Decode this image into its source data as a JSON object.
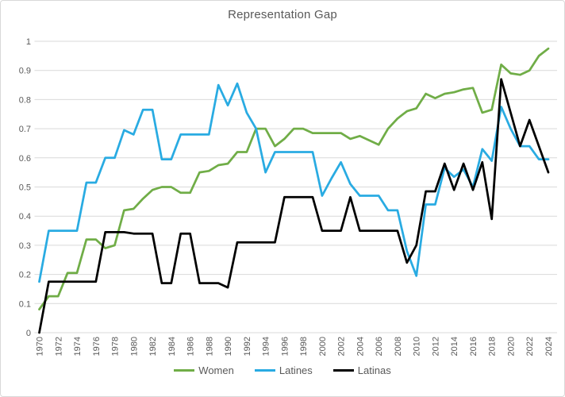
{
  "chart_data": {
    "type": "line",
    "title": "Representation Gap",
    "x_start": 1970,
    "x_end": 2024,
    "x_label_step": 2,
    "ylim": [
      0,
      1
    ],
    "y_ticks": [
      "0",
      "0.1",
      "0.2",
      "0.3",
      "0.4",
      "0.5",
      "0.6",
      "0.7",
      "0.8",
      "0.9",
      "1"
    ],
    "grid": "horizontal-only",
    "legend_position": "bottom-center",
    "axis_text_color": "#595959",
    "grid_color": "#D9D9D9",
    "series": [
      {
        "name": "Women",
        "color": "#70AD47",
        "values": [
          0.08,
          0.125,
          0.125,
          0.205,
          0.205,
          0.32,
          0.32,
          0.29,
          0.3,
          0.42,
          0.425,
          0.46,
          0.49,
          0.5,
          0.5,
          0.48,
          0.48,
          0.55,
          0.555,
          0.575,
          0.58,
          0.62,
          0.62,
          0.7,
          0.7,
          0.64,
          0.665,
          0.7,
          0.7,
          0.685,
          0.685,
          0.685,
          0.685,
          0.665,
          0.675,
          0.66,
          0.645,
          0.7,
          0.735,
          0.76,
          0.77,
          0.82,
          0.805,
          0.82,
          0.825,
          0.835,
          0.84,
          0.755,
          0.765,
          0.92,
          0.89,
          0.885,
          0.9,
          0.95,
          0.975
        ]
      },
      {
        "name": "Latines",
        "color": "#29ABE2",
        "values": [
          0.175,
          0.35,
          0.35,
          0.35,
          0.35,
          0.515,
          0.515,
          0.6,
          0.6,
          0.695,
          0.68,
          0.765,
          0.765,
          0.595,
          0.595,
          0.68,
          0.68,
          0.68,
          0.68,
          0.85,
          0.78,
          0.855,
          0.755,
          0.7,
          0.55,
          0.62,
          0.62,
          0.62,
          0.62,
          0.62,
          0.47,
          0.53,
          0.585,
          0.51,
          0.47,
          0.47,
          0.47,
          0.42,
          0.42,
          0.28,
          0.195,
          0.44,
          0.44,
          0.565,
          0.535,
          0.56,
          0.5,
          0.63,
          0.59,
          0.775,
          0.7,
          0.64,
          0.64,
          0.595,
          0.595
        ]
      },
      {
        "name": "Latinas",
        "color": "#000000",
        "values": [
          0.0,
          0.175,
          0.175,
          0.175,
          0.175,
          0.175,
          0.175,
          0.345,
          0.345,
          0.345,
          0.34,
          0.34,
          0.34,
          0.17,
          0.17,
          0.34,
          0.34,
          0.17,
          0.17,
          0.17,
          0.155,
          0.31,
          0.31,
          0.31,
          0.31,
          0.31,
          0.465,
          0.465,
          0.465,
          0.465,
          0.35,
          0.35,
          0.35,
          0.465,
          0.35,
          0.35,
          0.35,
          0.35,
          0.35,
          0.24,
          0.3,
          0.485,
          0.485,
          0.58,
          0.49,
          0.58,
          0.49,
          0.585,
          0.39,
          0.87,
          0.755,
          0.64,
          0.73,
          0.64,
          0.55
        ]
      }
    ]
  }
}
